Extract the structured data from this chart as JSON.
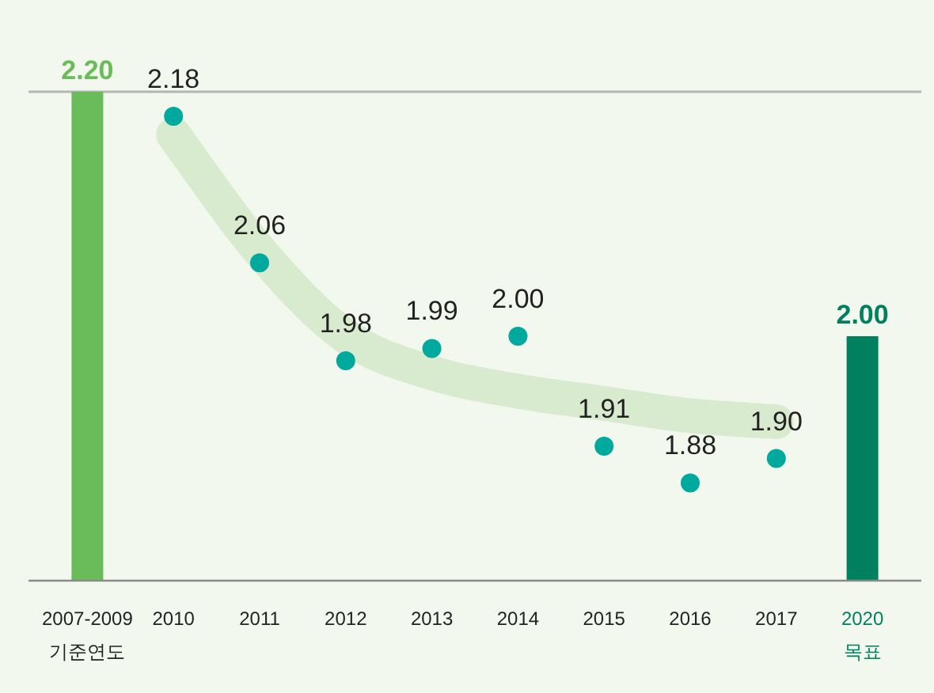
{
  "chart_data": {
    "type": "scatter",
    "categories": [
      "2007-2009\n기준연도",
      "2010",
      "2011",
      "2012",
      "2013",
      "2014",
      "2015",
      "2016",
      "2017",
      "2020\n목표"
    ],
    "ylim": [
      1.8,
      2.2
    ],
    "ref_lines": [
      {
        "axis": "y",
        "value": 2.2,
        "color": "#b4b4b4"
      }
    ],
    "series": [
      {
        "type": "line",
        "color": "#d9ebcf",
        "values": [
          null,
          2.165,
          2.07,
          2.0,
          1.97,
          1.955,
          1.945,
          1.935,
          1.93,
          null
        ]
      },
      {
        "type": "bar",
        "colors": [
          "#6abb5a",
          null,
          null,
          null,
          null,
          null,
          null,
          null,
          null,
          "#00805e"
        ],
        "values": [
          2.2,
          null,
          null,
          null,
          null,
          null,
          null,
          null,
          null,
          2.0
        ],
        "value_labels": [
          "2.20",
          null,
          null,
          null,
          null,
          null,
          null,
          null,
          null,
          "2.00"
        ]
      },
      {
        "color": "#00a99d",
        "values": [
          null,
          2.18,
          2.06,
          1.98,
          1.99,
          2.0,
          1.91,
          1.88,
          1.9,
          null
        ],
        "value_labels": [
          null,
          "2.18",
          "2.06",
          "1.98",
          "1.99",
          "2.00",
          "1.91",
          "1.88",
          "1.90",
          null
        ]
      }
    ]
  }
}
